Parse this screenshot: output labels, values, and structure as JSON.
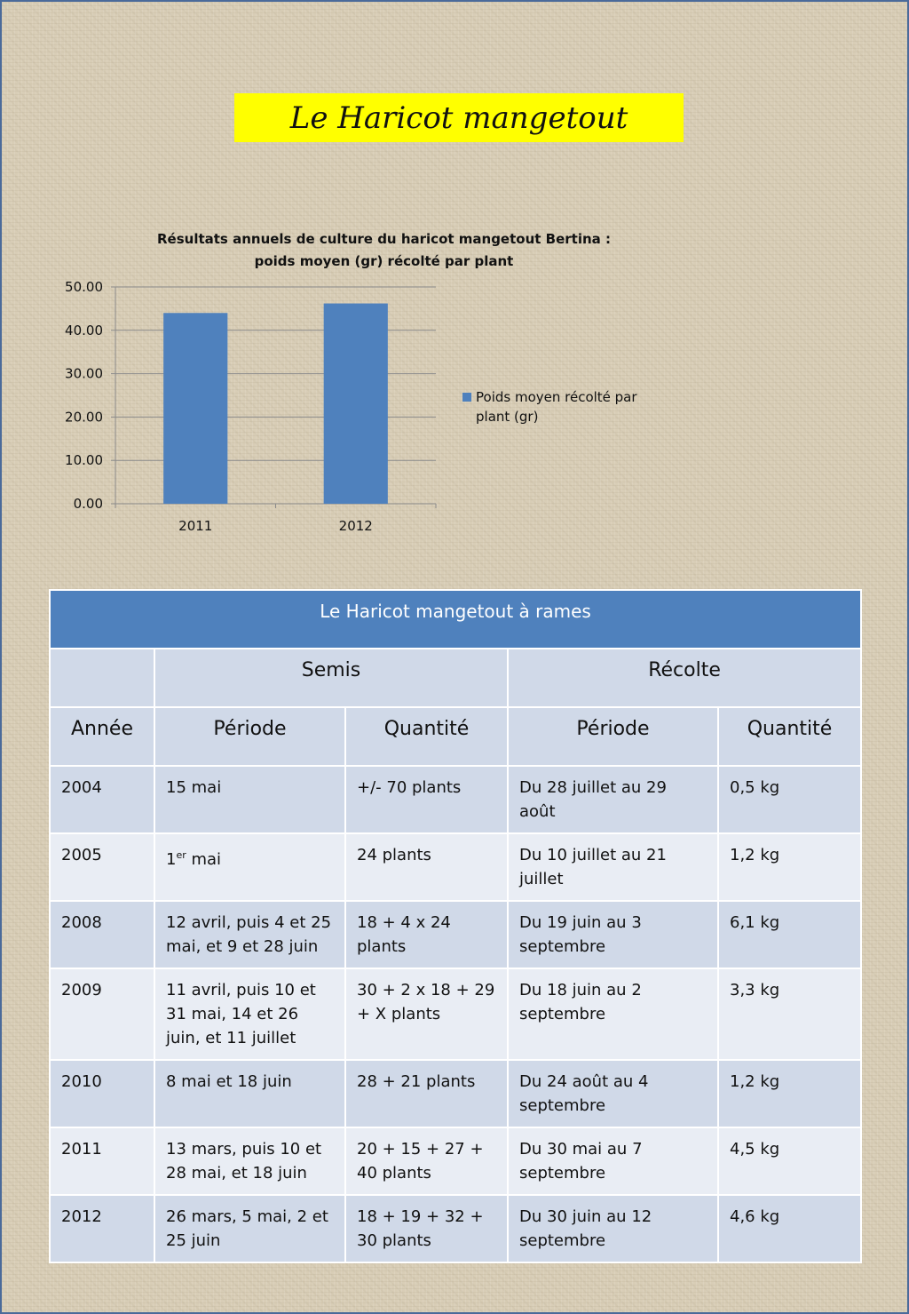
{
  "title": "Le Haricot mangetout",
  "chart_data": {
    "type": "bar",
    "title": "Résultats annuels de culture du haricot mangetout Bertina : poids moyen (gr) récolté par plant",
    "title_lines": [
      "Résultats annuels de culture du haricot mangetout Bertina :",
      "poids moyen (gr) récolté par plant"
    ],
    "categories": [
      "2011",
      "2012"
    ],
    "series": [
      {
        "name": "Poids moyen récolté par plant (gr)",
        "values": [
          44.0,
          46.2
        ],
        "color": "#4f81bd"
      }
    ],
    "legend_lines": [
      "Poids moyen récolté par",
      "plant (gr)"
    ],
    "ylim": [
      0,
      50
    ],
    "yticks": [
      "0.00",
      "10.00",
      "20.00",
      "30.00",
      "40.00",
      "50.00"
    ],
    "grid": true,
    "legend_position": "right"
  },
  "table": {
    "title": "Le Haricot mangetout à rames",
    "group_semis": "Semis",
    "group_recolte": "Récolte",
    "columns": [
      "Année",
      "Période",
      "Quantité",
      "Période",
      "Quantité"
    ],
    "rows": [
      {
        "annee": "2004",
        "semis_periode": "15 mai",
        "semis_quantite": "+/- 70 plants",
        "recolte_periode": "Du 28 juillet au 29 août",
        "recolte_quantite": "0,5 kg"
      },
      {
        "annee": "2005",
        "semis_periode_num": "1",
        "semis_periode_sup": "er",
        "semis_periode_rest": " mai",
        "semis_quantite": "24 plants",
        "recolte_periode": "Du 10 juillet au 21 juillet",
        "recolte_quantite": "1,2 kg"
      },
      {
        "annee": "2008",
        "semis_periode": "12 avril, puis 4 et 25 mai, et 9 et 28 juin",
        "semis_quantite": "18 + 4 x 24 plants",
        "recolte_periode": "Du 19 juin au 3 septembre",
        "recolte_quantite": "6,1 kg"
      },
      {
        "annee": "2009",
        "semis_periode": "11 avril, puis 10 et 31 mai, 14 et 26 juin, et 11 juillet",
        "semis_quantite": "30 + 2 x 18 + 29 + X plants",
        "recolte_periode": "Du 18 juin au 2 septembre",
        "recolte_quantite": "3,3 kg"
      },
      {
        "annee": "2010",
        "semis_periode": "8 mai et 18 juin",
        "semis_quantite": "28 + 21 plants",
        "recolte_periode": "Du 24 août au 4 septembre",
        "recolte_quantite": "1,2 kg"
      },
      {
        "annee": "2011",
        "semis_periode": "13 mars, puis 10 et 28 mai, et 18 juin",
        "semis_quantite": "20 + 15 + 27 + 40 plants",
        "recolte_periode": "Du 30 mai au 7 septembre",
        "recolte_quantite": "4,5 kg"
      },
      {
        "annee": "2012",
        "semis_periode": "26 mars, 5 mai, 2 et 25 juin",
        "semis_quantite": "18 + 19 + 32 + 30 plants",
        "recolte_periode": "Du 30 juin au 12 septembre",
        "recolte_quantite": "4,6 kg"
      }
    ]
  }
}
